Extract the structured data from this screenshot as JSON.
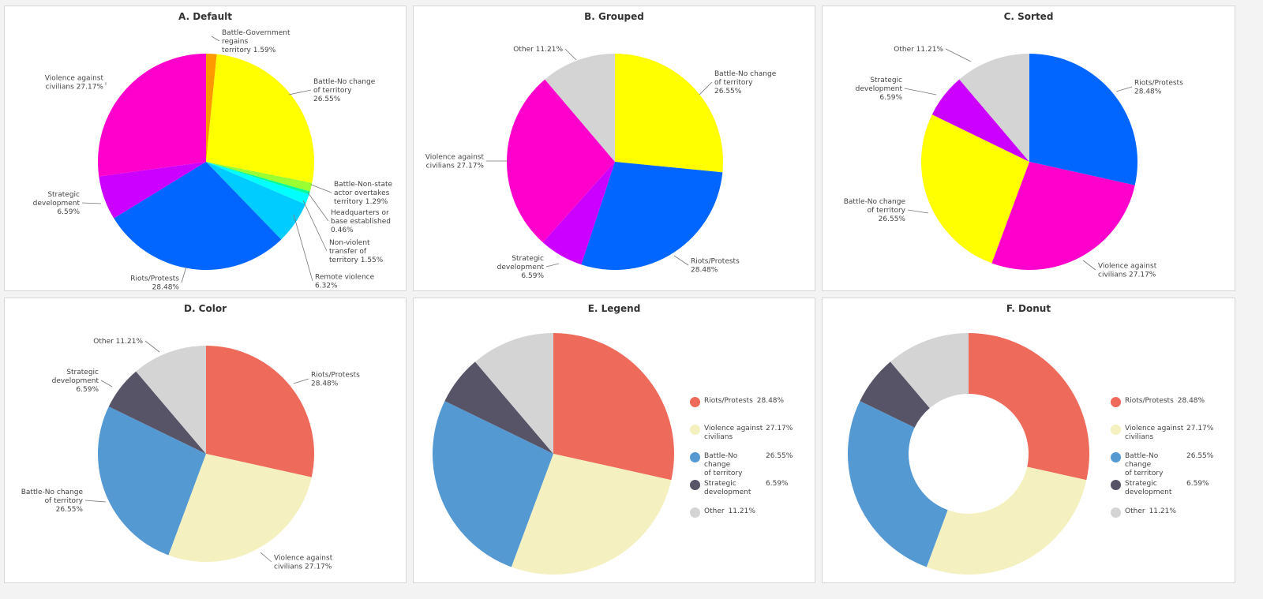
{
  "chart_data": [
    {
      "id": "A",
      "type": "pie",
      "title": "A. Default",
      "slices": [
        {
          "label": "Battle-Government regains territory",
          "value": 1.59,
          "pct": "1.59%",
          "color": "#ff9900"
        },
        {
          "label": "Battle-No change of territory",
          "value": 26.55,
          "pct": "26.55%",
          "color": "#ffff00"
        },
        {
          "label": "Battle-Non-state actor overtakes territory",
          "value": 1.29,
          "pct": "1.29%",
          "color": "#99ff33"
        },
        {
          "label": "Headquarters or base established",
          "value": 0.46,
          "pct": "0.46%",
          "color": "#00ff99"
        },
        {
          "label": "Non-violent transfer of territory",
          "value": 1.55,
          "pct": "1.55%",
          "color": "#00ffff"
        },
        {
          "label": "Remote violence",
          "value": 6.32,
          "pct": "6.32%",
          "color": "#00ccff"
        },
        {
          "label": "Riots/Protests",
          "value": 28.48,
          "pct": "28.48%",
          "color": "#0066ff"
        },
        {
          "label": "Strategic development",
          "value": 6.59,
          "pct": "6.59%",
          "color": "#cc00ff"
        },
        {
          "label": "Violence against civilians",
          "value": 27.17,
          "pct": "27.17%",
          "color": "#ff00cc"
        }
      ]
    },
    {
      "id": "B",
      "type": "pie",
      "title": "B. Grouped",
      "slices": [
        {
          "label": "Battle-No change of territory",
          "value": 26.55,
          "pct": "26.55%",
          "color": "#ffff00"
        },
        {
          "label": "Riots/Protests",
          "value": 28.48,
          "pct": "28.48%",
          "color": "#0066ff"
        },
        {
          "label": "Strategic development",
          "value": 6.59,
          "pct": "6.59%",
          "color": "#cc00ff"
        },
        {
          "label": "Violence against civilians",
          "value": 27.17,
          "pct": "27.17%",
          "color": "#ff00cc"
        },
        {
          "label": "Other",
          "value": 11.21,
          "pct": "11.21%",
          "color": "#d4d4d4"
        }
      ]
    },
    {
      "id": "C",
      "type": "pie",
      "title": "C. Sorted",
      "slices": [
        {
          "label": "Riots/Protests",
          "value": 28.48,
          "pct": "28.48%",
          "color": "#0066ff"
        },
        {
          "label": "Violence against civilians",
          "value": 27.17,
          "pct": "27.17%",
          "color": "#ff00cc"
        },
        {
          "label": "Battle-No change of territory",
          "value": 26.55,
          "pct": "26.55%",
          "color": "#ffff00"
        },
        {
          "label": "Strategic development",
          "value": 6.59,
          "pct": "6.59%",
          "color": "#cc00ff"
        },
        {
          "label": "Other",
          "value": 11.21,
          "pct": "11.21%",
          "color": "#d4d4d4"
        }
      ]
    },
    {
      "id": "D",
      "type": "pie",
      "title": "D. Color",
      "slices": [
        {
          "label": "Riots/Protests",
          "value": 28.48,
          "pct": "28.48%",
          "color": "#ee6a5a"
        },
        {
          "label": "Violence against civilians",
          "value": 27.17,
          "pct": "27.17%",
          "color": "#f4f0bf"
        },
        {
          "label": "Battle-No change of territory",
          "value": 26.55,
          "pct": "26.55%",
          "color": "#5599d3"
        },
        {
          "label": "Strategic development",
          "value": 6.59,
          "pct": "6.59%",
          "color": "#575467"
        },
        {
          "label": "Other",
          "value": 11.21,
          "pct": "11.21%",
          "color": "#d4d4d4"
        }
      ]
    },
    {
      "id": "E",
      "type": "pie",
      "title": "E. Legend",
      "legend": "right",
      "slices": [
        {
          "label": "Riots/Protests",
          "value": 28.48,
          "pct": "28.48%",
          "color": "#ee6a5a"
        },
        {
          "label": "Violence against civilians",
          "value": 27.17,
          "pct": "27.17%",
          "color": "#f4f0bf"
        },
        {
          "label": "Battle-No change of territory",
          "value": 26.55,
          "pct": "26.55%",
          "color": "#5599d3"
        },
        {
          "label": "Strategic development",
          "value": 6.59,
          "pct": "6.59%",
          "color": "#575467"
        },
        {
          "label": "Other",
          "value": 11.21,
          "pct": "11.21%",
          "color": "#d4d4d4"
        }
      ]
    },
    {
      "id": "F",
      "type": "pie",
      "subtype": "donut",
      "title": "F. Donut",
      "legend": "right",
      "slices": [
        {
          "label": "Riots/Protests",
          "value": 28.48,
          "pct": "28.48%",
          "color": "#ee6a5a"
        },
        {
          "label": "Violence against civilians",
          "value": 27.17,
          "pct": "27.17%",
          "color": "#f4f0bf"
        },
        {
          "label": "Battle-No change of territory",
          "value": 26.55,
          "pct": "26.55%",
          "color": "#5599d3"
        },
        {
          "label": "Strategic development",
          "value": 6.59,
          "pct": "6.59%",
          "color": "#575467"
        },
        {
          "label": "Other",
          "value": 11.21,
          "pct": "11.21%",
          "color": "#d4d4d4"
        }
      ]
    }
  ]
}
